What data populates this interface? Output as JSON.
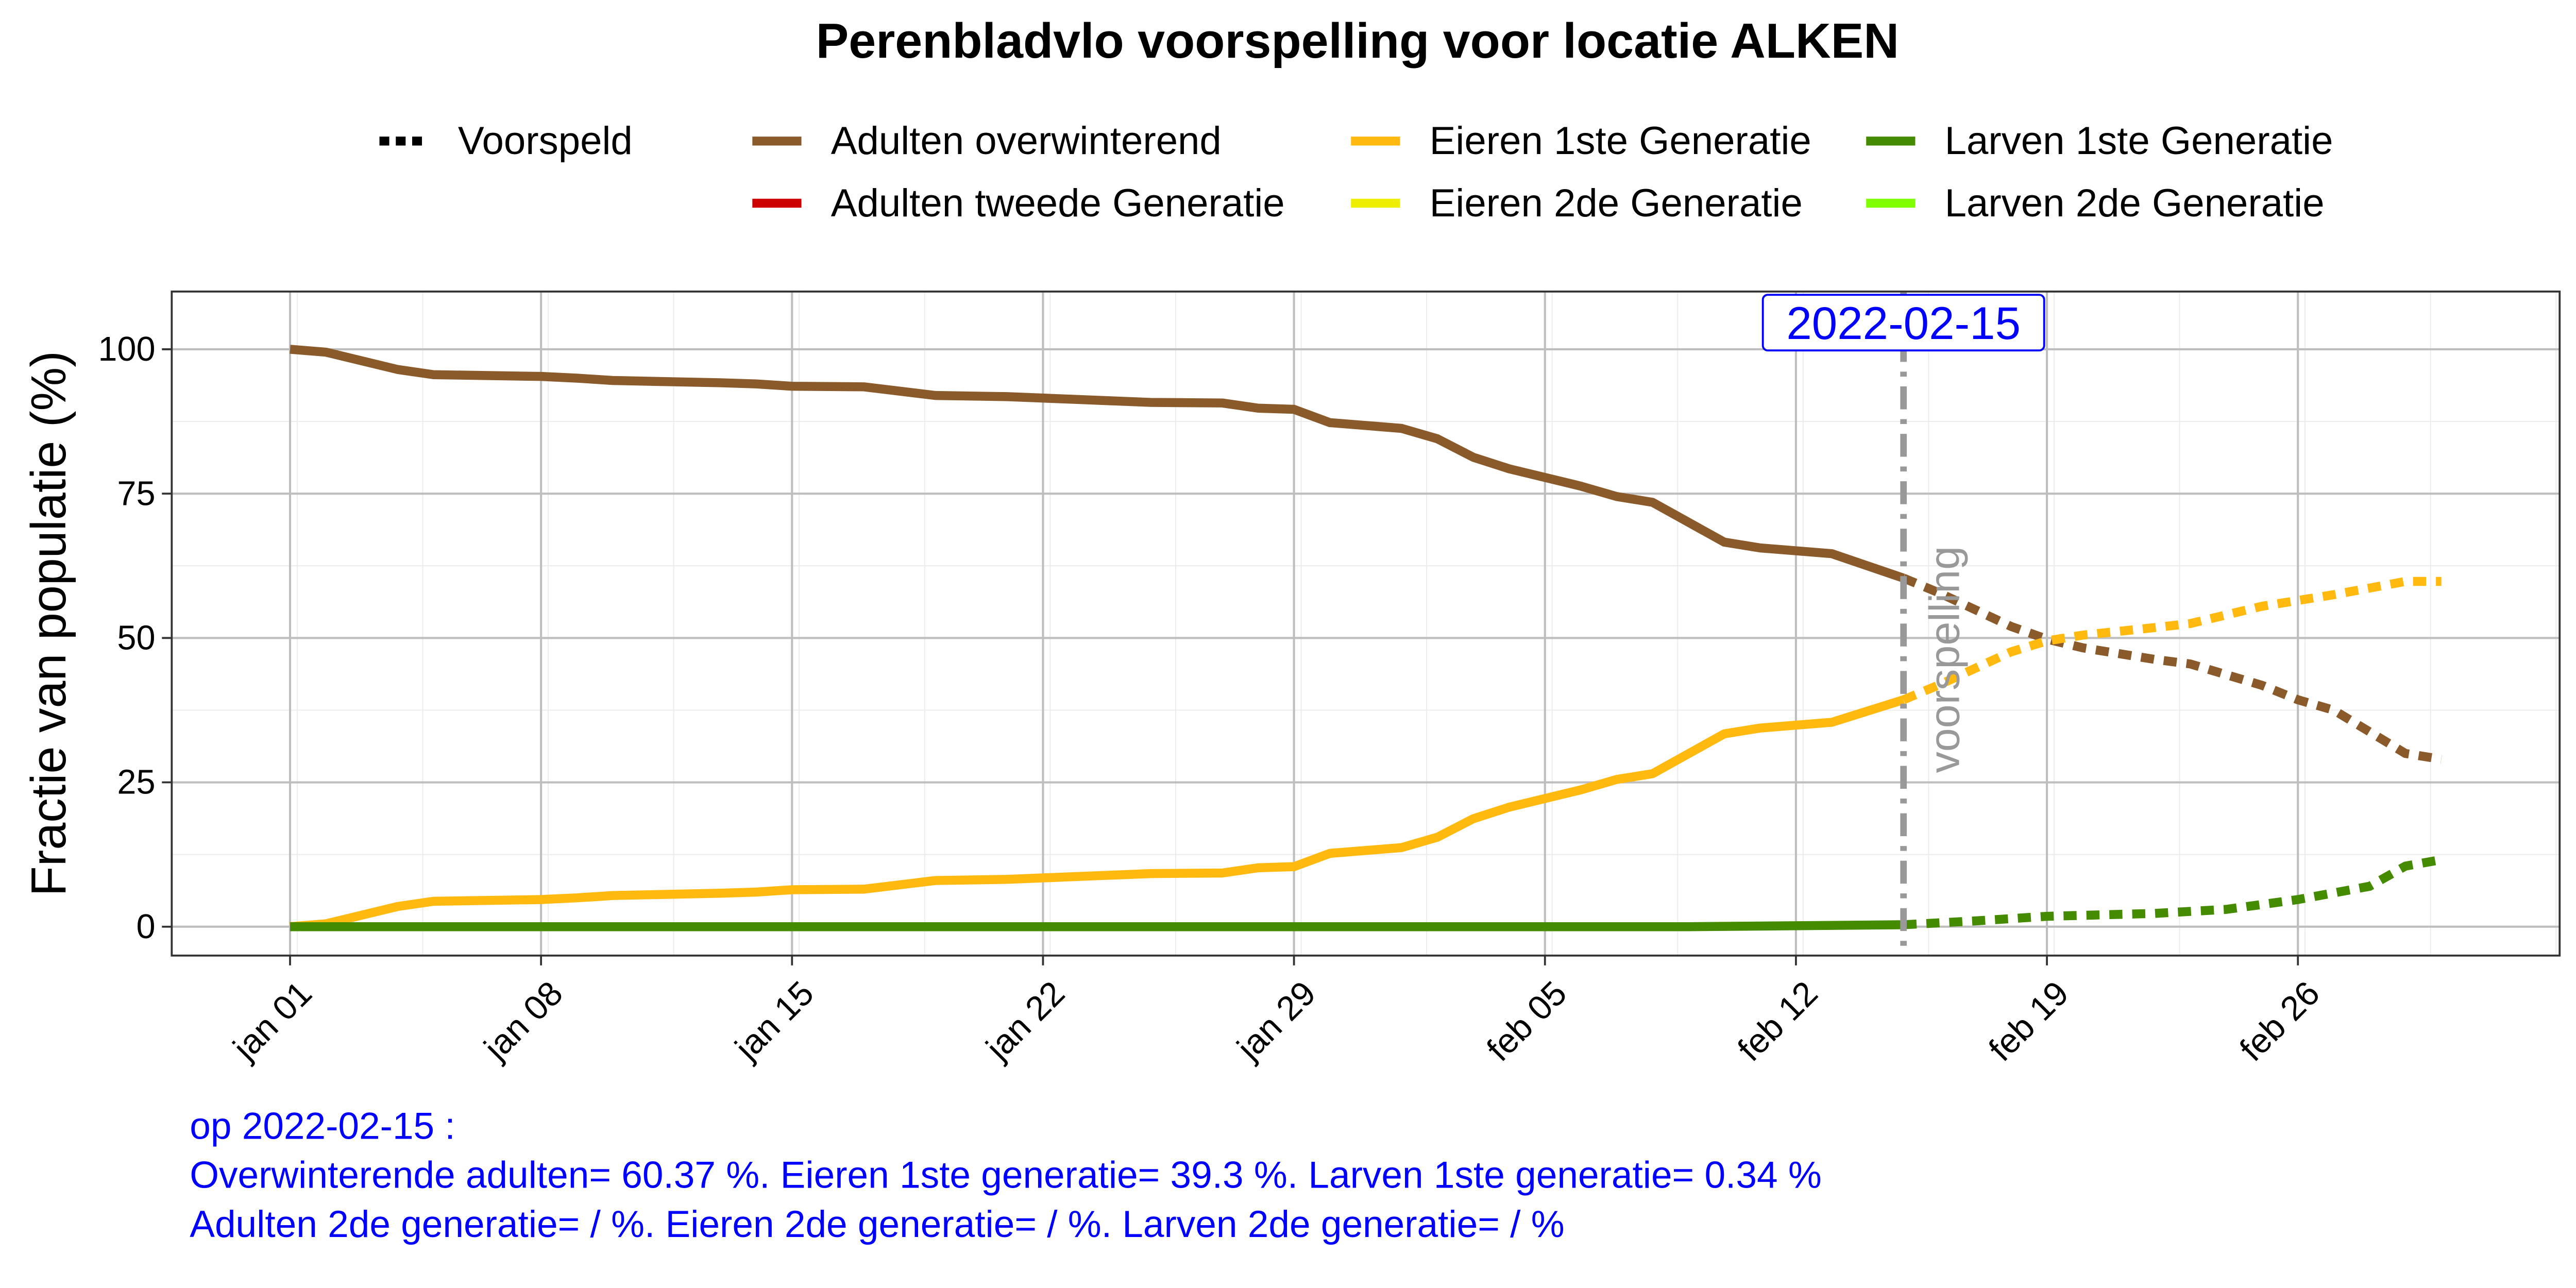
{
  "chart_data": {
    "type": "line",
    "title": "Perenbladvlo voorspelling voor locatie ALKEN",
    "xlabel": "",
    "ylabel": "Fractie van populatie (%)",
    "ylim": [
      -5,
      110
    ],
    "y_ticks": [
      "0",
      "25",
      "50",
      "75",
      "100"
    ],
    "x_ticks": [
      "jan 01",
      "jan 08",
      "jan 15",
      "jan 22",
      "jan 29",
      "feb 05",
      "feb 12",
      "feb 19",
      "feb 26"
    ],
    "x_axis_start": "2022-01-01",
    "grid": true,
    "legend_position": "top",
    "forecast_date": "2022-02-15",
    "forecast_text": "voorspelling",
    "legend": [
      {
        "label": "Voorspeld",
        "color": "#000000",
        "dashed": true
      },
      {
        "label": "Adulten overwinterend",
        "color": "#8b5a2b"
      },
      {
        "label": "Eieren 1ste Generatie",
        "color": "#ffb90f"
      },
      {
        "label": "Larven 1ste Generatie",
        "color": "#458b00"
      },
      {
        "label": "Adulten tweede Generatie",
        "color": "#cd0000"
      },
      {
        "label": "Eieren 2de Generatie",
        "color": "#eeee00"
      },
      {
        "label": "Larven 2de Generatie",
        "color": "#7fff00"
      }
    ],
    "series": [
      {
        "name": "Adulten overwinterend",
        "color": "#8b5a2b",
        "observed": [
          [
            "2022-01-01",
            100
          ],
          [
            "2022-01-02",
            99.5
          ],
          [
            "2022-01-04",
            96.5
          ],
          [
            "2022-01-05",
            95.6
          ],
          [
            "2022-01-08",
            95.3
          ],
          [
            "2022-01-09",
            95.0
          ],
          [
            "2022-01-10",
            94.6
          ],
          [
            "2022-01-13",
            94.2
          ],
          [
            "2022-01-14",
            94.0
          ],
          [
            "2022-01-15",
            93.6
          ],
          [
            "2022-01-17",
            93.5
          ],
          [
            "2022-01-19",
            92.0
          ],
          [
            "2022-01-21",
            91.8
          ],
          [
            "2022-01-23",
            91.3
          ],
          [
            "2022-01-25",
            90.8
          ],
          [
            "2022-01-27",
            90.7
          ],
          [
            "2022-01-28",
            89.8
          ],
          [
            "2022-01-29",
            89.6
          ],
          [
            "2022-01-30",
            87.3
          ],
          [
            "2022-02-01",
            86.3
          ],
          [
            "2022-02-02",
            84.5
          ],
          [
            "2022-02-03",
            81.3
          ],
          [
            "2022-02-04",
            79.3
          ],
          [
            "2022-02-06",
            76.3
          ],
          [
            "2022-02-07",
            74.5
          ],
          [
            "2022-02-08",
            73.5
          ],
          [
            "2022-02-10",
            66.6
          ],
          [
            "2022-02-11",
            65.6
          ],
          [
            "2022-02-13",
            64.6
          ],
          [
            "2022-02-15",
            60.37
          ]
        ],
        "forecast": [
          [
            "2022-02-15",
            60.37
          ],
          [
            "2022-02-16",
            57.8
          ],
          [
            "2022-02-18",
            52.0
          ],
          [
            "2022-02-19",
            49.8
          ],
          [
            "2022-02-20",
            48.3
          ],
          [
            "2022-02-22",
            46.3
          ],
          [
            "2022-02-23",
            45.5
          ],
          [
            "2022-02-25",
            41.8
          ],
          [
            "2022-02-26",
            39.3
          ],
          [
            "2022-02-27",
            37.5
          ],
          [
            "2022-03-01",
            30.0
          ],
          [
            "2022-03-02",
            29.0
          ]
        ]
      },
      {
        "name": "Eieren 1ste Generatie",
        "color": "#ffb90f",
        "observed": [
          [
            "2022-01-01",
            0
          ],
          [
            "2022-01-02",
            0.5
          ],
          [
            "2022-01-04",
            3.5
          ],
          [
            "2022-01-05",
            4.4
          ],
          [
            "2022-01-08",
            4.7
          ],
          [
            "2022-01-09",
            5.0
          ],
          [
            "2022-01-10",
            5.4
          ],
          [
            "2022-01-13",
            5.8
          ],
          [
            "2022-01-14",
            6.0
          ],
          [
            "2022-01-15",
            6.4
          ],
          [
            "2022-01-17",
            6.5
          ],
          [
            "2022-01-19",
            8.0
          ],
          [
            "2022-01-21",
            8.2
          ],
          [
            "2022-01-23",
            8.7
          ],
          [
            "2022-01-25",
            9.2
          ],
          [
            "2022-01-27",
            9.3
          ],
          [
            "2022-01-28",
            10.2
          ],
          [
            "2022-01-29",
            10.4
          ],
          [
            "2022-01-30",
            12.7
          ],
          [
            "2022-02-01",
            13.7
          ],
          [
            "2022-02-02",
            15.5
          ],
          [
            "2022-02-03",
            18.7
          ],
          [
            "2022-02-04",
            20.7
          ],
          [
            "2022-02-06",
            23.7
          ],
          [
            "2022-02-07",
            25.5
          ],
          [
            "2022-02-08",
            26.5
          ],
          [
            "2022-02-10",
            33.4
          ],
          [
            "2022-02-11",
            34.4
          ],
          [
            "2022-02-13",
            35.4
          ],
          [
            "2022-02-15",
            39.3
          ]
        ],
        "forecast": [
          [
            "2022-02-15",
            39.3
          ],
          [
            "2022-02-16",
            41.9
          ],
          [
            "2022-02-18",
            47.6
          ],
          [
            "2022-02-19",
            49.5
          ],
          [
            "2022-02-20",
            50.5
          ],
          [
            "2022-02-22",
            51.8
          ],
          [
            "2022-02-23",
            52.5
          ],
          [
            "2022-02-25",
            55.5
          ],
          [
            "2022-02-26",
            56.5
          ],
          [
            "2022-02-27",
            57.5
          ],
          [
            "2022-03-01",
            59.8
          ],
          [
            "2022-03-02",
            59.8
          ]
        ]
      },
      {
        "name": "Larven 1ste Generatie",
        "color": "#458b00",
        "observed": [
          [
            "2022-01-01",
            0
          ],
          [
            "2022-02-09",
            0
          ],
          [
            "2022-02-15",
            0.34
          ]
        ],
        "forecast": [
          [
            "2022-02-15",
            0.34
          ],
          [
            "2022-02-17",
            1.0
          ],
          [
            "2022-02-19",
            1.8
          ],
          [
            "2022-02-22",
            2.3
          ],
          [
            "2022-02-24",
            3.0
          ],
          [
            "2022-02-26",
            4.7
          ],
          [
            "2022-02-28",
            7.0
          ],
          [
            "2022-03-01",
            10.5
          ],
          [
            "2022-03-02",
            11.6
          ]
        ]
      }
    ]
  },
  "footer": {
    "line1": "op 2022-02-15  :",
    "line2": "Overwinterende adulten= 60.37 %. Eieren 1ste generatie= 39.3 %. Larven 1ste generatie= 0.34 %",
    "line3": "Adulten 2de generatie=  / %. Eieren 2de generatie=  / %. Larven 2de generatie=  / %"
  }
}
